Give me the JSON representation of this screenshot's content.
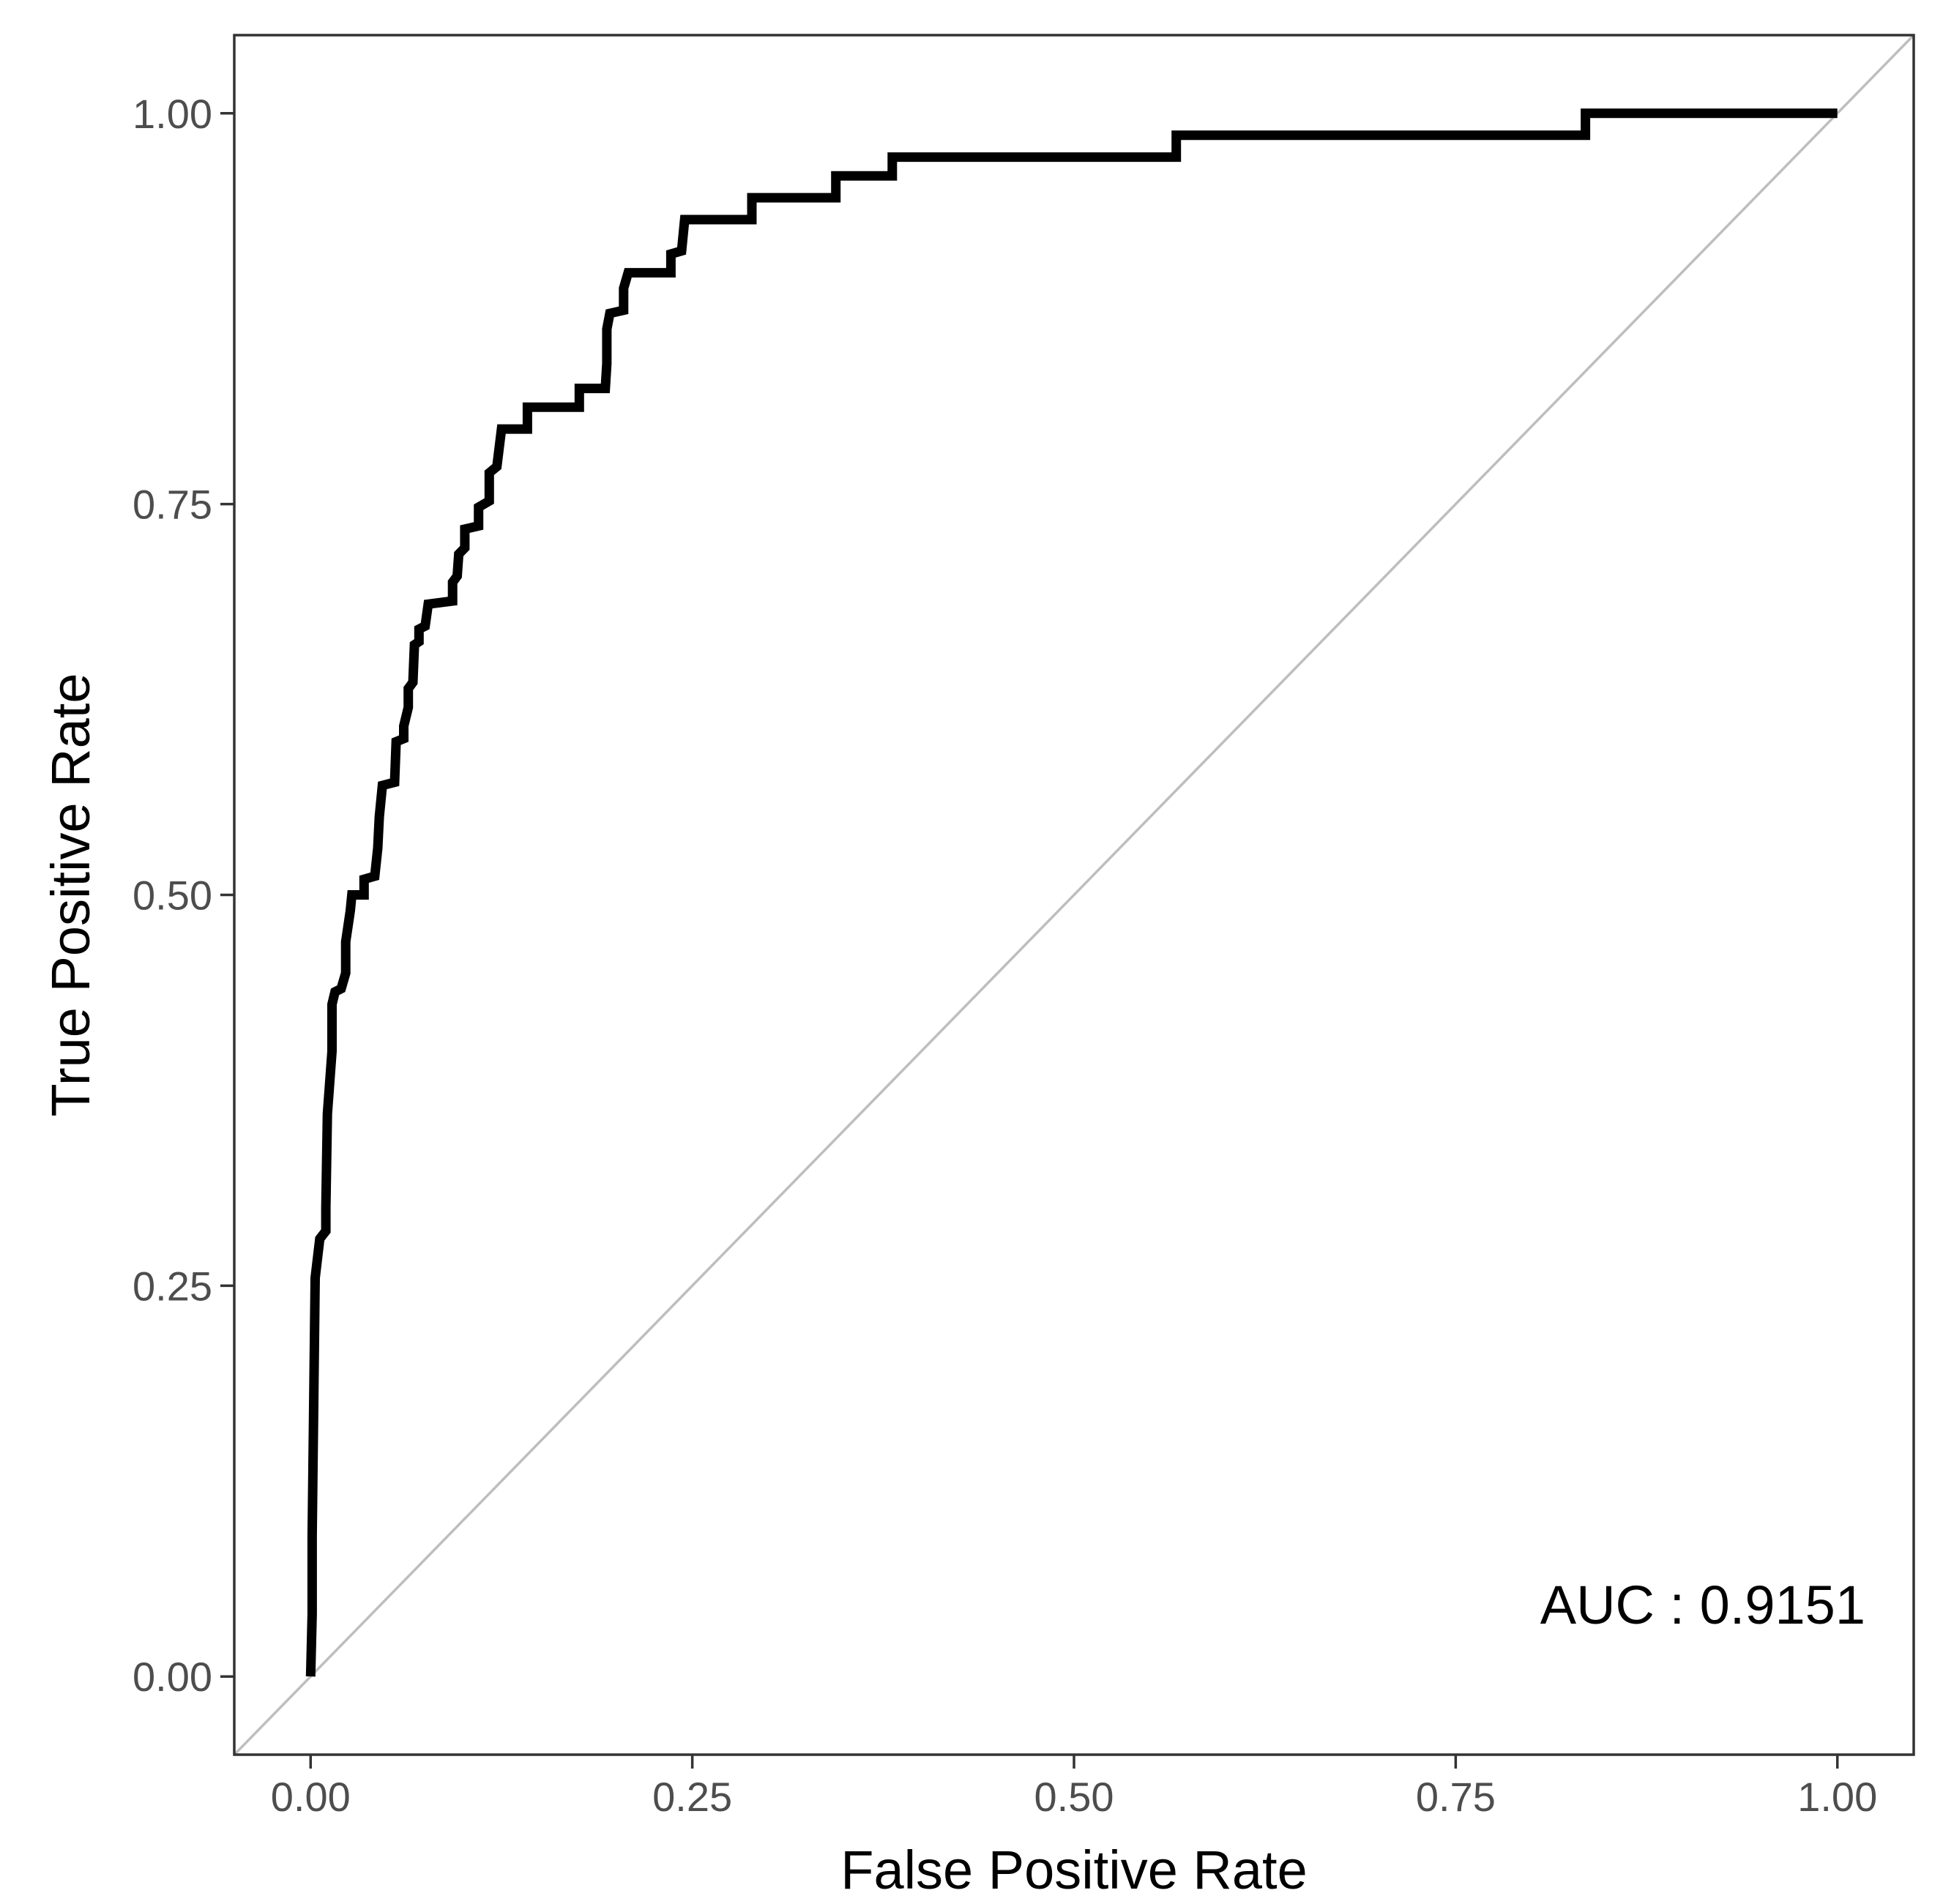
{
  "chart_data": {
    "type": "line",
    "title": "",
    "xlabel": "False Positive Rate",
    "ylabel": "True Positive Rate",
    "xlim": [
      -0.05,
      1.05
    ],
    "ylim": [
      -0.05,
      1.05
    ],
    "grid": false,
    "x_ticks": [
      0,
      0.25,
      0.5,
      0.75,
      1
    ],
    "x_tick_labels": [
      "0.00",
      "0.25",
      "0.50",
      "0.75",
      "1.00"
    ],
    "y_ticks": [
      0,
      0.25,
      0.5,
      0.75,
      1
    ],
    "y_tick_labels": [
      "0.00",
      "0.25",
      "0.50",
      "0.75",
      "1.00"
    ],
    "annotation": "AUC : 0.9151",
    "colors": {
      "roc_line": "#000000",
      "reference_line": "#bebebe",
      "panel_border": "#333333",
      "tick_text": "#4d4d4d"
    },
    "series": [
      {
        "name": "ROC curve",
        "points": [
          [
            0.0,
            0.0
          ],
          [
            0.001,
            0.04
          ],
          [
            0.001,
            0.09
          ],
          [
            0.002,
            0.17
          ],
          [
            0.003,
            0.255
          ],
          [
            0.006,
            0.28
          ],
          [
            0.01,
            0.285
          ],
          [
            0.01,
            0.3
          ],
          [
            0.011,
            0.36
          ],
          [
            0.014,
            0.4
          ],
          [
            0.014,
            0.43
          ],
          [
            0.016,
            0.438
          ],
          [
            0.02,
            0.44
          ],
          [
            0.023,
            0.45
          ],
          [
            0.023,
            0.47
          ],
          [
            0.026,
            0.49
          ],
          [
            0.027,
            0.5
          ],
          [
            0.035,
            0.5
          ],
          [
            0.035,
            0.51
          ],
          [
            0.042,
            0.512
          ],
          [
            0.044,
            0.53
          ],
          [
            0.045,
            0.55
          ],
          [
            0.047,
            0.57
          ],
          [
            0.055,
            0.572
          ],
          [
            0.056,
            0.598
          ],
          [
            0.061,
            0.6
          ],
          [
            0.061,
            0.608
          ],
          [
            0.064,
            0.62
          ],
          [
            0.064,
            0.632
          ],
          [
            0.067,
            0.636
          ],
          [
            0.068,
            0.66
          ],
          [
            0.071,
            0.662
          ],
          [
            0.071,
            0.67
          ],
          [
            0.075,
            0.672
          ],
          [
            0.077,
            0.686
          ],
          [
            0.093,
            0.688
          ],
          [
            0.093,
            0.7
          ],
          [
            0.096,
            0.704
          ],
          [
            0.097,
            0.718
          ],
          [
            0.101,
            0.722
          ],
          [
            0.101,
            0.734
          ],
          [
            0.11,
            0.736
          ],
          [
            0.11,
            0.748
          ],
          [
            0.117,
            0.752
          ],
          [
            0.117,
            0.77
          ],
          [
            0.122,
            0.774
          ],
          [
            0.125,
            0.798
          ],
          [
            0.142,
            0.798
          ],
          [
            0.142,
            0.812
          ],
          [
            0.176,
            0.812
          ],
          [
            0.176,
            0.824
          ],
          [
            0.193,
            0.824
          ],
          [
            0.194,
            0.84
          ],
          [
            0.194,
            0.862
          ],
          [
            0.196,
            0.872
          ],
          [
            0.205,
            0.874
          ],
          [
            0.205,
            0.888
          ],
          [
            0.208,
            0.898
          ],
          [
            0.236,
            0.898
          ],
          [
            0.236,
            0.91
          ],
          [
            0.243,
            0.912
          ],
          [
            0.245,
            0.932
          ],
          [
            0.289,
            0.932
          ],
          [
            0.289,
            0.946
          ],
          [
            0.344,
            0.946
          ],
          [
            0.344,
            0.96
          ],
          [
            0.381,
            0.96
          ],
          [
            0.381,
            0.972
          ],
          [
            0.567,
            0.972
          ],
          [
            0.567,
            0.986
          ],
          [
            0.835,
            0.986
          ],
          [
            0.835,
            1.0
          ],
          [
            1.0,
            1.0
          ]
        ]
      }
    ],
    "reference_line": [
      [
        -0.05,
        -0.05
      ],
      [
        1.05,
        1.05
      ]
    ]
  }
}
